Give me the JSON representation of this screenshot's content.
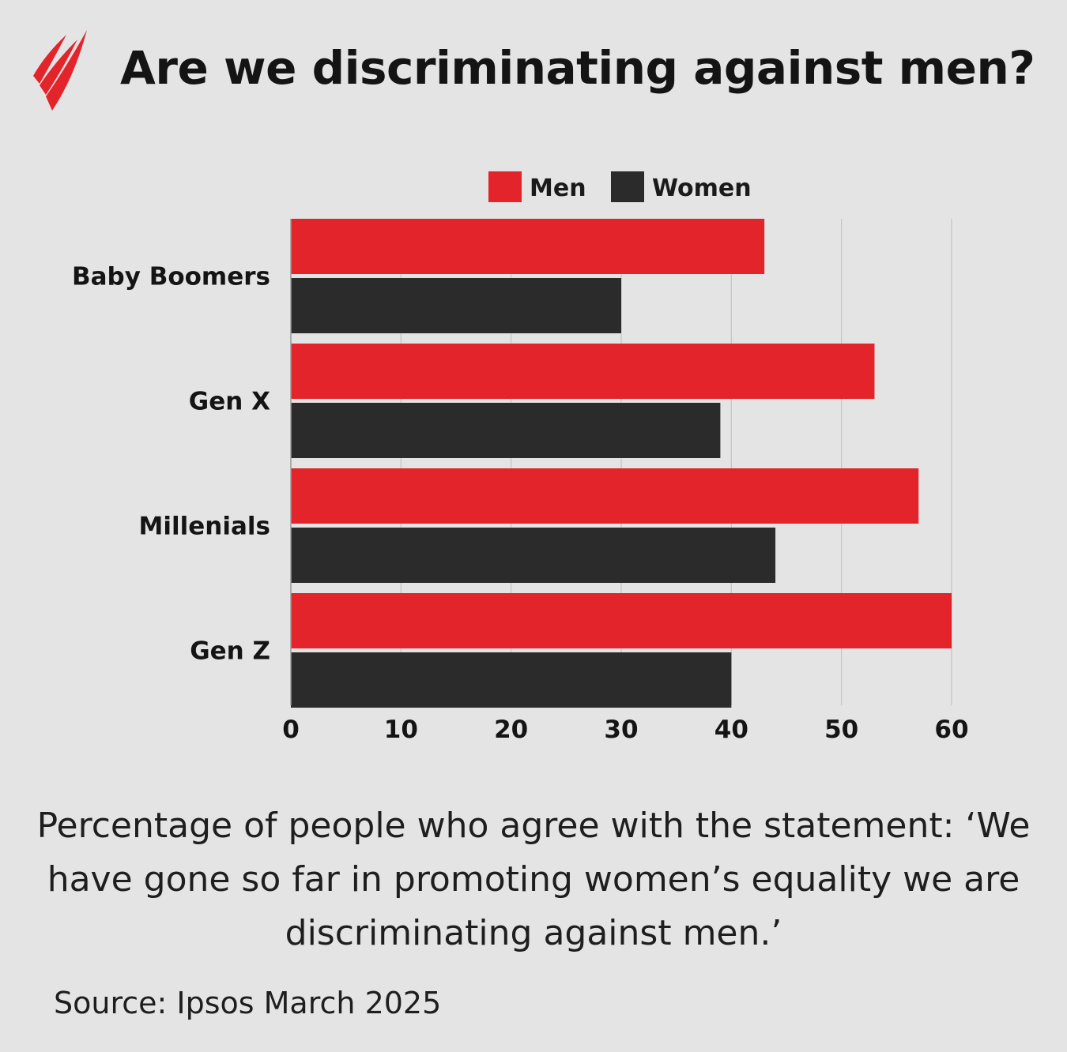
{
  "title": "Are we discriminating against men?",
  "logo": {
    "icon": "sbs-logo-icon",
    "color": "#e3242b"
  },
  "chart_data": {
    "type": "bar",
    "orientation": "horizontal",
    "title": "Are we discriminating against men?",
    "categories": [
      "Baby Boomers",
      "Gen X",
      "Millenials",
      "Gen Z"
    ],
    "series": [
      {
        "name": "Men",
        "color": "#e3242b",
        "values": [
          43,
          53,
          57,
          60
        ]
      },
      {
        "name": "Women",
        "color": "#2b2b2b",
        "values": [
          30,
          39,
          44,
          40
        ]
      }
    ],
    "xlim": [
      0,
      60
    ],
    "xticks": [
      0,
      10,
      20,
      30,
      40,
      50,
      60
    ],
    "xlabel": "",
    "ylabel": "",
    "grid": true,
    "legend_position": "top-center"
  },
  "caption": {
    "lines": [
      "Percentage of people who agree with the statement: ‘We",
      "have gone so far in promoting women’s equality we are",
      "discriminating against men.’"
    ]
  },
  "source": "Source: Ipsos March 2025"
}
